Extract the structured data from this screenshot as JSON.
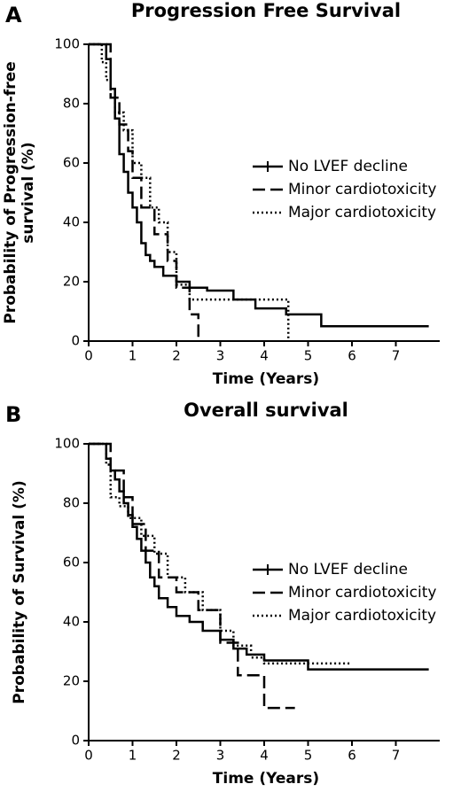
{
  "chart_data": [
    {
      "type": "line",
      "step": true,
      "panel": "A",
      "title": "Progression Free Survival",
      "xlabel": "Time (Years)",
      "ylabel": [
        "Probability of Progression-free",
        "survival (%)"
      ],
      "xlim": [
        0,
        8
      ],
      "ylim": [
        0,
        100
      ],
      "xticks": [
        0,
        1,
        2,
        3,
        4,
        5,
        6,
        7
      ],
      "yticks": [
        0,
        20,
        40,
        60,
        80,
        100
      ],
      "legend": "right",
      "series": [
        {
          "name": "No LVEF decline",
          "color": "#000000",
          "dash": "solid",
          "x": [
            0,
            0.3,
            0.4,
            0.5,
            0.6,
            0.7,
            0.8,
            0.9,
            1.0,
            1.1,
            1.2,
            1.3,
            1.4,
            1.5,
            1.7,
            2.0,
            2.3,
            2.7,
            3.3,
            3.8,
            4.5,
            5.3,
            7.75
          ],
          "values": [
            100,
            100,
            95,
            85,
            75,
            63,
            57,
            50,
            45,
            40,
            33,
            29,
            27,
            25,
            22,
            20,
            18,
            17,
            14,
            11,
            9,
            5,
            5
          ]
        },
        {
          "name": "Minor cardiotoxicity",
          "color": "#000000",
          "dash": "dashed",
          "x": [
            0,
            0.5,
            0.7,
            0.9,
            1.0,
            1.2,
            1.5,
            1.8,
            2.0,
            2.3,
            2.5
          ],
          "values": [
            100,
            82,
            73,
            64,
            55,
            45,
            36,
            27,
            18,
            9,
            0
          ]
        },
        {
          "name": "Major cardiotoxicity",
          "color": "#000000",
          "dash": "dotted",
          "x": [
            0,
            0.3,
            0.4,
            0.5,
            0.6,
            0.8,
            1.0,
            1.2,
            1.4,
            1.6,
            1.8,
            2.0,
            2.3,
            4.55
          ],
          "values": [
            100,
            94,
            88,
            82,
            77,
            71,
            60,
            55,
            45,
            40,
            30,
            19,
            14,
            0
          ]
        }
      ]
    },
    {
      "type": "line",
      "step": true,
      "panel": "B",
      "title": "Overall survival",
      "xlabel": "Time (Years)",
      "ylabel": [
        "Probability of Survival (%)"
      ],
      "xlim": [
        0,
        8
      ],
      "ylim": [
        0,
        100
      ],
      "xticks": [
        0,
        1,
        2,
        3,
        4,
        5,
        6,
        7
      ],
      "yticks": [
        0,
        20,
        40,
        60,
        80,
        100
      ],
      "legend": "right",
      "series": [
        {
          "name": "No LVEF decline",
          "color": "#000000",
          "dash": "solid",
          "x": [
            0,
            0.4,
            0.5,
            0.6,
            0.7,
            0.8,
            0.9,
            1.0,
            1.1,
            1.2,
            1.3,
            1.4,
            1.5,
            1.6,
            1.8,
            2.0,
            2.3,
            2.6,
            3.0,
            3.3,
            3.6,
            4.0,
            5.0,
            7.75
          ],
          "values": [
            100,
            95,
            91,
            88,
            84,
            80,
            76,
            72,
            68,
            64,
            60,
            55,
            52,
            48,
            45,
            42,
            40,
            37,
            34,
            31,
            29,
            27,
            24,
            24
          ]
        },
        {
          "name": "Minor cardiotoxicity",
          "color": "#000000",
          "dash": "dashed",
          "x": [
            0,
            0.5,
            0.8,
            1.0,
            1.3,
            1.6,
            2.0,
            2.5,
            3.0,
            3.4,
            4.0,
            4.7
          ],
          "values": [
            100,
            91,
            82,
            73,
            64,
            55,
            50,
            44,
            33,
            22,
            11,
            11
          ]
        },
        {
          "name": "Major cardiotoxicity",
          "color": "#000000",
          "dash": "dotted",
          "x": [
            0,
            0.4,
            0.5,
            0.7,
            0.9,
            1.2,
            1.5,
            1.8,
            2.2,
            2.6,
            3.0,
            3.3,
            3.7,
            4.0,
            6.0
          ],
          "values": [
            100,
            93,
            82,
            79,
            75,
            69,
            63,
            55,
            50,
            44,
            37,
            32,
            28,
            26,
            26
          ]
        }
      ]
    }
  ]
}
